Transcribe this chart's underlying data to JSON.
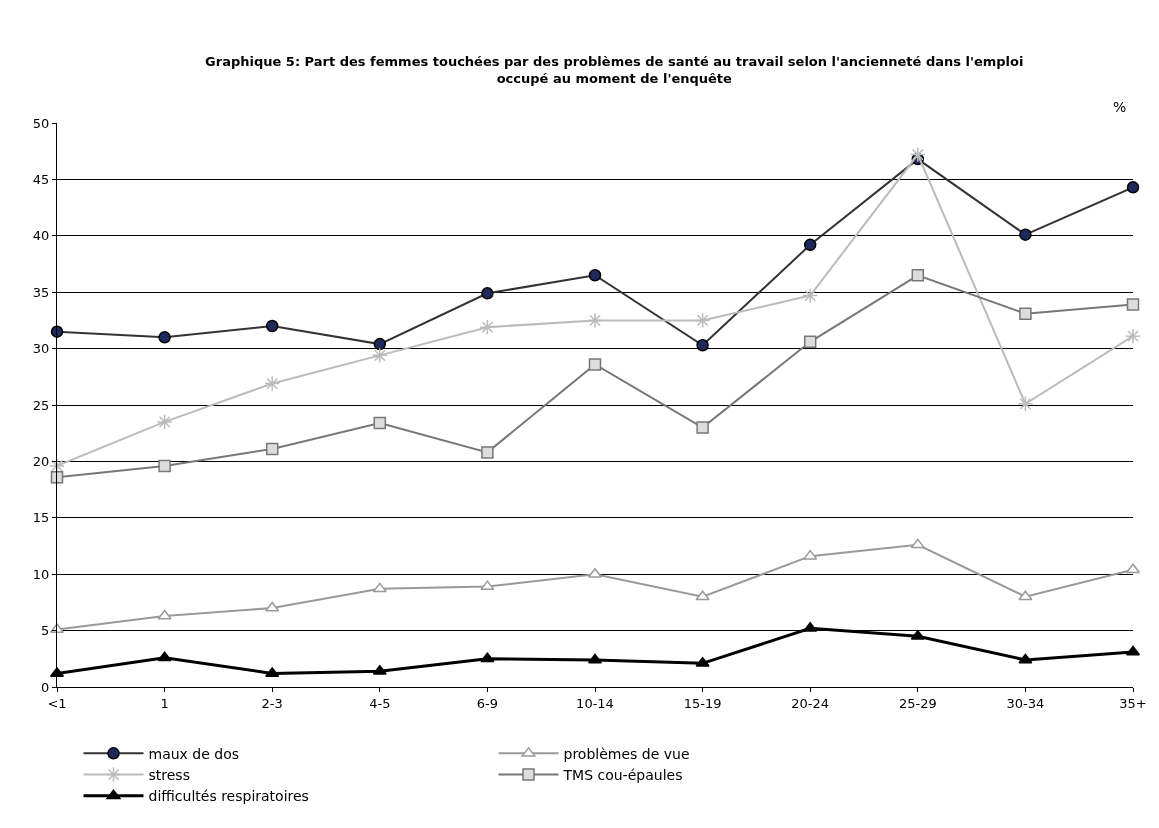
{
  "chart_data": {
    "type": "line",
    "title": "Graphique 5: Part des femmes touchées par des problèmes de santé au travail selon l'ancienneté dans l'emploi\noccupé au moment de l'enquête",
    "ylabel": "%",
    "categories": [
      "<1",
      "1",
      "2-3",
      "4-5",
      "6-9",
      "10-14",
      "15-19",
      "20-24",
      "25-29",
      "30-34",
      "35+"
    ],
    "ylim": [
      0,
      50
    ],
    "yticks": [
      0,
      5,
      10,
      15,
      20,
      25,
      30,
      35,
      40,
      45,
      50
    ],
    "grid": "y",
    "legend": "bottom",
    "line_style": "solid",
    "series": [
      {
        "name": "maux de dos",
        "color": "#333333",
        "marker": "circle",
        "values": [
          31.5,
          31,
          32,
          30.4,
          34.9,
          36.5,
          30.3,
          39.2,
          46.8,
          40.1,
          44.3
        ]
      },
      {
        "name": "problèmes de vue",
        "color": "#999999",
        "marker": "triangle",
        "values": [
          5.1,
          6.3,
          7.0,
          8.7,
          8.9,
          10.0,
          8.0,
          11.6,
          12.6,
          8.0,
          10.4
        ]
      },
      {
        "name": "stress",
        "color": "#bbbbbb",
        "marker": "cross",
        "values": [
          19.6,
          23.5,
          26.9,
          29.4,
          31.9,
          32.5,
          32.5,
          34.7,
          47.2,
          25.1,
          31.1
        ]
      },
      {
        "name": "TMS cou-épaules",
        "color": "#777777",
        "marker": "square",
        "values": [
          18.6,
          19.6,
          21.1,
          23.4,
          20.8,
          28.6,
          23.0,
          30.6,
          36.5,
          33.1,
          33.9
        ]
      },
      {
        "name": "difficultés respiratoires",
        "color": "#000000",
        "marker": "triangle",
        "values": [
          1.2,
          2.6,
          1.2,
          1.4,
          2.5,
          2.4,
          2.1,
          5.2,
          4.5,
          2.4,
          3.1
        ]
      }
    ]
  }
}
